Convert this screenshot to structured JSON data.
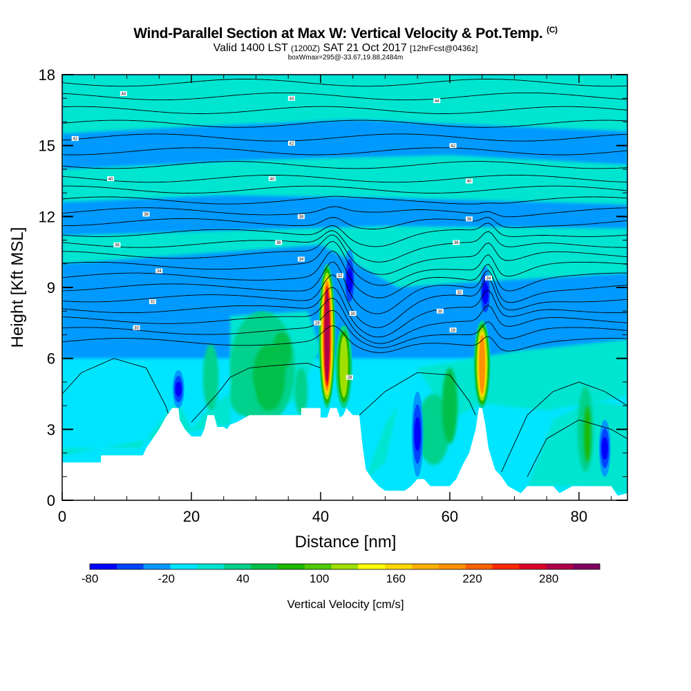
{
  "header": {
    "title": "Wind-Parallel Section at Max W: Vertical Velocity & Pot.Temp.",
    "title_mark": "(C)",
    "valid_prefix": "Valid 1400 LST",
    "valid_utc": "(1200Z)",
    "valid_date": "SAT 21 Oct 2017",
    "forecast": "[12hrFcst@0436z]",
    "boxinfo": "boxWmax=295@-33.67,19.88,2484m"
  },
  "chart_data": {
    "type": "heatmap",
    "xlabel": "Distance [nm]",
    "ylabel": "Height [Kft MSL]",
    "xlim": [
      0,
      87.5
    ],
    "ylim": [
      0,
      18
    ],
    "xticks": [
      0,
      20,
      40,
      60,
      80
    ],
    "yticks": [
      0,
      3,
      6,
      9,
      12,
      15,
      18
    ],
    "colorbar": {
      "title": "Vertical Velocity [cm/s]",
      "tick_labels": [
        "-80",
        "-20",
        "40",
        "100",
        "160",
        "220",
        "280"
      ],
      "tick_values": [
        -80,
        -20,
        40,
        100,
        160,
        220,
        280
      ],
      "min": -80,
      "max": 320,
      "colors": [
        "#0000ff",
        "#0044ff",
        "#0099ff",
        "#00e5ff",
        "#00e5d0",
        "#00d18c",
        "#00c04a",
        "#1cb800",
        "#4fcc00",
        "#9fe000",
        "#ffff00",
        "#ffd800",
        "#ffb000",
        "#ff9000",
        "#ff6000",
        "#ff2800",
        "#dc0028",
        "#b0004a",
        "#800060"
      ]
    },
    "background_class": "near-zero (-20 to 0 cm/s) cyan",
    "terrain_km": [
      [
        0,
        1.6
      ],
      [
        6,
        1.6
      ],
      [
        6,
        1.9
      ],
      [
        12.5,
        1.9
      ],
      [
        13,
        2.2
      ],
      [
        14,
        2.6
      ],
      [
        15,
        3.0
      ],
      [
        16,
        3.5
      ],
      [
        17,
        3.9
      ],
      [
        18,
        3.9
      ],
      [
        18.2,
        3.4
      ],
      [
        19,
        3.0
      ],
      [
        20,
        2.7
      ],
      [
        21.5,
        2.7
      ],
      [
        22,
        3.0
      ],
      [
        22.5,
        3.6
      ],
      [
        23.5,
        3.6
      ],
      [
        24,
        3.1
      ],
      [
        25,
        3.1
      ],
      [
        25.5,
        3.0
      ],
      [
        26,
        3.2
      ],
      [
        27,
        3.3
      ],
      [
        29,
        3.6
      ],
      [
        37,
        3.6
      ],
      [
        37,
        3.9
      ],
      [
        40,
        3.9
      ],
      [
        40,
        3.5
      ],
      [
        41,
        3.5
      ],
      [
        41.5,
        3.9
      ],
      [
        42.5,
        3.9
      ],
      [
        43,
        3.5
      ],
      [
        43.5,
        3.6
      ],
      [
        44,
        3.9
      ],
      [
        45,
        3.6
      ],
      [
        46,
        3.6
      ],
      [
        46.5,
        2.3
      ],
      [
        47,
        1.3
      ],
      [
        48,
        0.9
      ],
      [
        49,
        0.6
      ],
      [
        50,
        0.4
      ],
      [
        53,
        0.4
      ],
      [
        54,
        0.6
      ],
      [
        55,
        0.9
      ],
      [
        56,
        0.9
      ],
      [
        57,
        0.6
      ],
      [
        60,
        0.6
      ],
      [
        61,
        0.9
      ],
      [
        62,
        1.5
      ],
      [
        63,
        2.0
      ],
      [
        64,
        3.0
      ],
      [
        64.5,
        3.9
      ],
      [
        65,
        3.9
      ],
      [
        65.5,
        3.2
      ],
      [
        66,
        2.2
      ],
      [
        67,
        1.3
      ],
      [
        68,
        1.0
      ],
      [
        69,
        0.6
      ],
      [
        71,
        0.3
      ],
      [
        72,
        0.6
      ],
      [
        76,
        0.6
      ],
      [
        77,
        0.3
      ],
      [
        79,
        0.6
      ],
      [
        85,
        0.6
      ],
      [
        86,
        0.2
      ],
      [
        87.5,
        0.3
      ]
    ],
    "updrafts": [
      {
        "x": 41,
        "y_bottom": 3.9,
        "y_top": 10.0,
        "peak_cm_s": 295
      },
      {
        "x": 43.6,
        "y_bottom": 3.9,
        "y_top": 7.4,
        "peak_cm_s": 120
      },
      {
        "x": 65,
        "y_bottom": 3.9,
        "y_top": 7.6,
        "peak_cm_s": 200
      }
    ],
    "downdrafts": [
      {
        "x": 44.5,
        "y_bottom": 8.0,
        "y_top": 10.6,
        "min_cm_s": -80
      },
      {
        "x": 65.5,
        "y_bottom": 7.6,
        "y_top": 9.9,
        "min_cm_s": -80
      },
      {
        "x": 18,
        "y_bottom": 3.9,
        "y_top": 5.5,
        "min_cm_s": -60
      },
      {
        "x": 55,
        "y_bottom": 1.0,
        "y_top": 4.6,
        "min_cm_s": -60
      },
      {
        "x": 84,
        "y_bottom": 1.0,
        "y_top": 3.4,
        "min_cm_s": -60
      }
    ],
    "theta_labels": [
      {
        "x": 9.5,
        "y": 17.2,
        "text": "44"
      },
      {
        "x": 35.5,
        "y": 17.0,
        "text": "44"
      },
      {
        "x": 58,
        "y": 16.9,
        "text": "44"
      },
      {
        "x": 2,
        "y": 15.3,
        "text": "42"
      },
      {
        "x": 35.5,
        "y": 15.1,
        "text": "42"
      },
      {
        "x": 60.5,
        "y": 15.0,
        "text": "42"
      },
      {
        "x": 7.5,
        "y": 13.6,
        "text": "40"
      },
      {
        "x": 32.5,
        "y": 13.6,
        "text": "40"
      },
      {
        "x": 63,
        "y": 13.5,
        "text": "40"
      },
      {
        "x": 13,
        "y": 12.1,
        "text": "38"
      },
      {
        "x": 37,
        "y": 12.0,
        "text": "38"
      },
      {
        "x": 63,
        "y": 11.9,
        "text": "38"
      },
      {
        "x": 8.5,
        "y": 10.8,
        "text": "36"
      },
      {
        "x": 33.5,
        "y": 10.9,
        "text": "36"
      },
      {
        "x": 61,
        "y": 10.9,
        "text": "36"
      },
      {
        "x": 15,
        "y": 9.7,
        "text": "34"
      },
      {
        "x": 37,
        "y": 10.2,
        "text": "34"
      },
      {
        "x": 43,
        "y": 9.5,
        "text": "32"
      },
      {
        "x": 66,
        "y": 9.4,
        "text": "34"
      },
      {
        "x": 14,
        "y": 8.4,
        "text": "32"
      },
      {
        "x": 61.5,
        "y": 8.8,
        "text": "32"
      },
      {
        "x": 45,
        "y": 7.9,
        "text": "30"
      },
      {
        "x": 58.5,
        "y": 8.0,
        "text": "30"
      },
      {
        "x": 11.5,
        "y": 7.3,
        "text": "30"
      },
      {
        "x": 39.5,
        "y": 7.5,
        "text": "28"
      },
      {
        "x": 60.5,
        "y": 7.2,
        "text": "28"
      },
      {
        "x": 44.5,
        "y": 5.2,
        "text": "28"
      }
    ]
  }
}
